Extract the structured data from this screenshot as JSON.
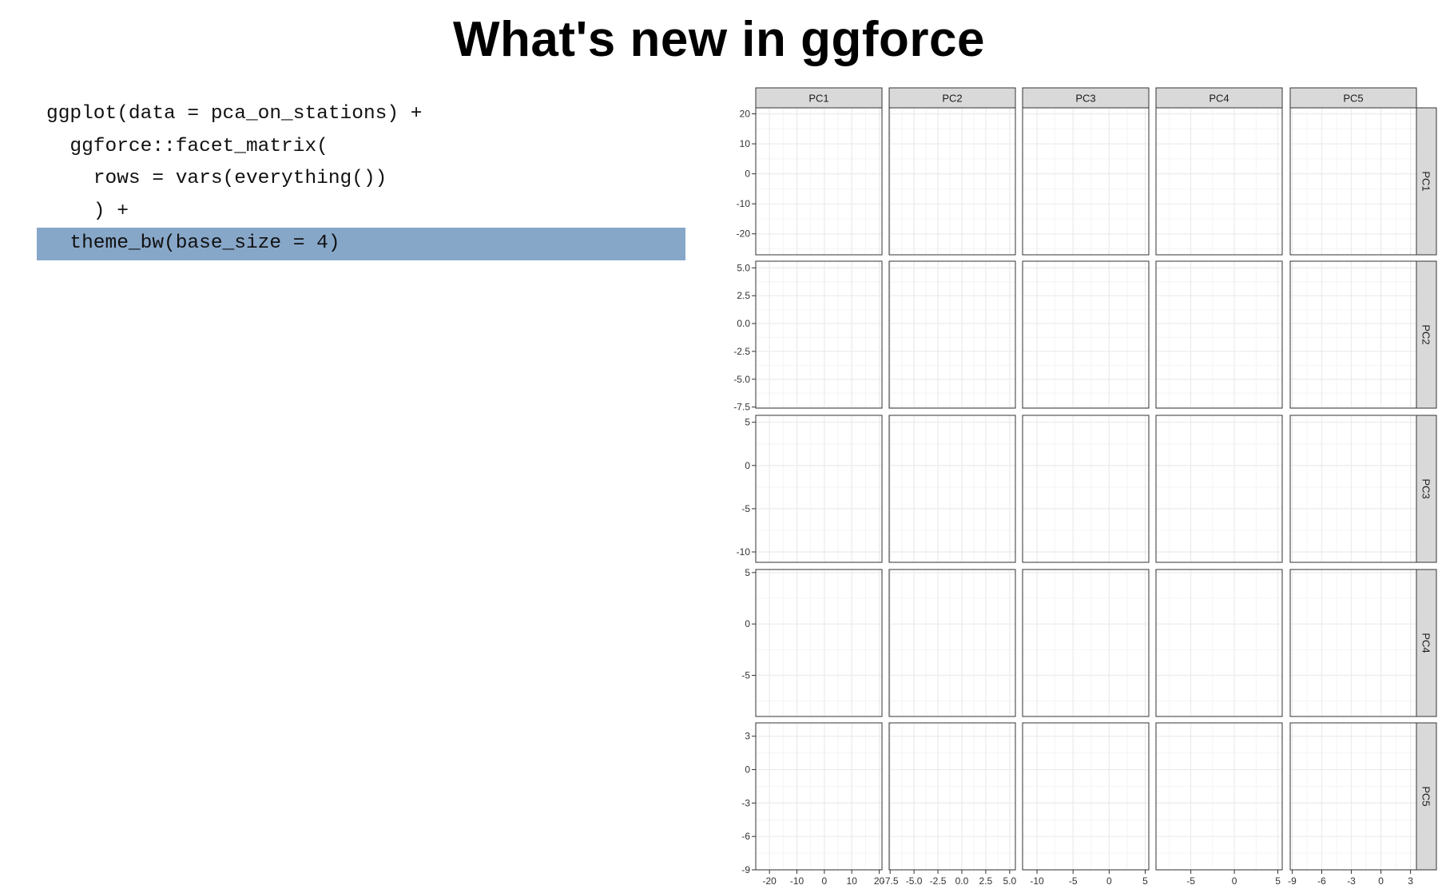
{
  "title": "What's new in ggforce",
  "code": {
    "lines": [
      "ggplot(data = pca_on_stations) +",
      "  ggforce::facet_matrix(",
      "    rows = vars(everything())",
      "    ) +",
      "  theme_bw(base_size = 4)"
    ],
    "highlight_line": 4,
    "highlight_color": "#87a7c9"
  },
  "chart_data": {
    "type": "scatter",
    "layout": "facet_matrix",
    "variables": [
      "PC1",
      "PC2",
      "PC3",
      "PC4",
      "PC5"
    ],
    "column_strips": [
      "PC1",
      "PC2",
      "PC3",
      "PC4",
      "PC5"
    ],
    "row_strips": [
      "PC1",
      "PC2",
      "PC3",
      "PC4",
      "PC5"
    ],
    "x_ranges": [
      [
        -25,
        21
      ],
      [
        -7.6,
        5.6
      ],
      [
        -12,
        5.5
      ],
      [
        -9,
        5.5
      ],
      [
        -9.2,
        3.6
      ]
    ],
    "y_ranges": [
      [
        -27,
        22
      ],
      [
        -7.6,
        5.6
      ],
      [
        -11.2,
        5.8
      ],
      [
        -9,
        5.3
      ],
      [
        -9,
        4.2
      ]
    ],
    "x_ticks": [
      [
        "-20",
        "-10",
        "0",
        "10",
        "20"
      ],
      [
        "-7.5",
        "-5.0",
        "-2.5",
        "0.0",
        "2.5",
        "5.0"
      ],
      [
        "-10",
        "-5",
        "0",
        "5"
      ],
      [
        "-5",
        "0",
        "5"
      ],
      [
        "-9",
        "-6",
        "-3",
        "0",
        "3"
      ]
    ],
    "y_ticks": [
      [
        "20",
        "10",
        "0",
        "-10",
        "-20"
      ],
      [
        "5.0",
        "2.5",
        "0.0",
        "-2.5",
        "-5.0",
        "-7.5"
      ],
      [
        "5",
        "0",
        "-5",
        "-10"
      ],
      [
        "5",
        "0",
        "-5"
      ],
      [
        "3",
        "0",
        "-3",
        "-6",
        "-9"
      ]
    ],
    "points": [],
    "grid": true,
    "panel_border": "#333333",
    "strip_fill": "#d9d9d9",
    "grid_color": "#ebebeb"
  }
}
